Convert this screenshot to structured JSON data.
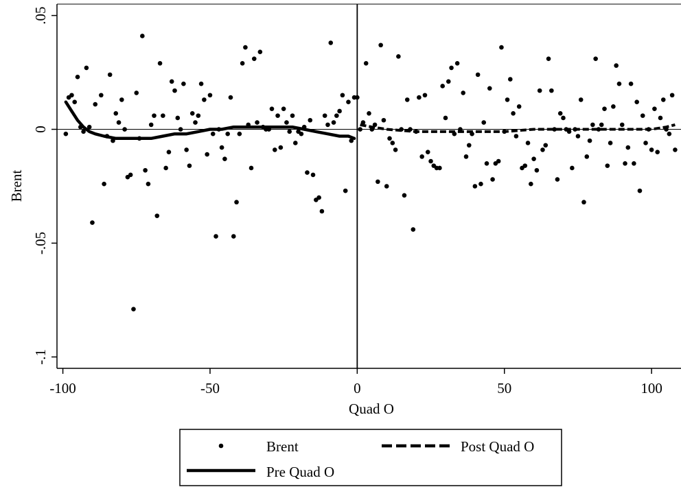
{
  "chart_data": {
    "type": "scatter",
    "xlabel": "Quad O",
    "ylabel": "Brent",
    "xlim": [
      -102,
      110
    ],
    "ylim": [
      -0.105,
      0.055
    ],
    "x_ticks": [
      {
        "value": -100,
        "label": "-100"
      },
      {
        "value": -50,
        "label": "-50"
      },
      {
        "value": 0,
        "label": "0"
      },
      {
        "value": 50,
        "label": "50"
      },
      {
        "value": 100,
        "label": "100"
      }
    ],
    "y_ticks": [
      {
        "value": 0.05,
        "label": ".05"
      },
      {
        "value": 0,
        "label": "0"
      },
      {
        "value": -0.05,
        "label": "-.05"
      },
      {
        "value": -0.1,
        "label": "-.1"
      }
    ],
    "reference_lines": {
      "x": 0,
      "y": 0
    },
    "grid": false,
    "legend": {
      "position": "bottom",
      "entries": [
        {
          "label": "Brent",
          "style": "dot"
        },
        {
          "label": "Post Quad O",
          "style": "dashed"
        },
        {
          "label": "Pre Quad O",
          "style": "solid"
        }
      ]
    },
    "series": [
      {
        "name": "Brent",
        "kind": "scatter",
        "color": "#000000",
        "points": [
          [
            -99,
            -0.002
          ],
          [
            -98,
            0.014
          ],
          [
            -97,
            0.015
          ],
          [
            -96,
            0.012
          ],
          [
            -95,
            0.023
          ],
          [
            -94,
            0.001
          ],
          [
            -93,
            -0.001
          ],
          [
            -92,
            0.027
          ],
          [
            -91,
            0.001
          ],
          [
            -90,
            -0.041
          ],
          [
            -89,
            0.011
          ],
          [
            -87,
            0.015
          ],
          [
            -86,
            -0.024
          ],
          [
            -85,
            -0.003
          ],
          [
            -84,
            0.024
          ],
          [
            -83,
            -0.005
          ],
          [
            -82,
            0.007
          ],
          [
            -81,
            0.003
          ],
          [
            -80,
            0.013
          ],
          [
            -79,
            0.0
          ],
          [
            -78,
            -0.021
          ],
          [
            -77,
            -0.02
          ],
          [
            -76,
            -0.079
          ],
          [
            -75,
            0.016
          ],
          [
            -74,
            -0.004
          ],
          [
            -73,
            0.041
          ],
          [
            -72,
            -0.018
          ],
          [
            -71,
            -0.024
          ],
          [
            -70,
            0.002
          ],
          [
            -69,
            0.006
          ],
          [
            -68,
            -0.038
          ],
          [
            -67,
            0.029
          ],
          [
            -66,
            0.006
          ],
          [
            -65,
            -0.017
          ],
          [
            -64,
            -0.01
          ],
          [
            -63,
            0.021
          ],
          [
            -62,
            0.017
          ],
          [
            -61,
            0.005
          ],
          [
            -60,
            0.0
          ],
          [
            -59,
            0.02
          ],
          [
            -58,
            -0.009
          ],
          [
            -57,
            -0.016
          ],
          [
            -56,
            0.007
          ],
          [
            -55,
            0.003
          ],
          [
            -54,
            0.006
          ],
          [
            -53,
            0.02
          ],
          [
            -52,
            0.013
          ],
          [
            -51,
            -0.011
          ],
          [
            -50,
            0.015
          ],
          [
            -49,
            -0.002
          ],
          [
            -48,
            -0.047
          ],
          [
            -47,
            0.0
          ],
          [
            -46,
            -0.008
          ],
          [
            -45,
            -0.013
          ],
          [
            -44,
            -0.002
          ],
          [
            -43,
            0.014
          ],
          [
            -42,
            -0.047
          ],
          [
            -41,
            -0.032
          ],
          [
            -40,
            -0.002
          ],
          [
            -39,
            0.029
          ],
          [
            -38,
            0.036
          ],
          [
            -37,
            0.002
          ],
          [
            -36,
            -0.017
          ],
          [
            -35,
            0.031
          ],
          [
            -34,
            0.003
          ],
          [
            -33,
            0.034
          ],
          [
            -32,
            0.001
          ],
          [
            -31,
            0.0
          ],
          [
            -30,
            0.0
          ],
          [
            -29,
            0.009
          ],
          [
            -28,
            -0.009
          ],
          [
            -27,
            0.006
          ],
          [
            -26,
            -0.008
          ],
          [
            -25,
            0.009
          ],
          [
            -24,
            0.003
          ],
          [
            -23,
            -0.001
          ],
          [
            -22,
            0.006
          ],
          [
            -21,
            -0.006
          ],
          [
            -20,
            -0.001
          ],
          [
            -19,
            -0.002
          ],
          [
            -18,
            0.001
          ],
          [
            -17,
            -0.019
          ],
          [
            -16,
            0.004
          ],
          [
            -15,
            -0.02
          ],
          [
            -14,
            -0.031
          ],
          [
            -13,
            -0.03
          ],
          [
            -12,
            -0.036
          ],
          [
            -11,
            0.006
          ],
          [
            -10,
            0.002
          ],
          [
            -9,
            0.038
          ],
          [
            -8,
            0.003
          ],
          [
            -7,
            0.006
          ],
          [
            -6,
            0.008
          ],
          [
            -5,
            0.015
          ],
          [
            -4,
            -0.027
          ],
          [
            -3,
            0.012
          ],
          [
            -2,
            -0.005
          ],
          [
            -1,
            0.014
          ],
          [
            0,
            0.014
          ],
          [
            1,
            0.0
          ],
          [
            2,
            0.003
          ],
          [
            3,
            0.029
          ],
          [
            4,
            0.007
          ],
          [
            5,
            0.0
          ],
          [
            6,
            0.002
          ],
          [
            7,
            -0.023
          ],
          [
            8,
            0.037
          ],
          [
            9,
            0.004
          ],
          [
            10,
            -0.025
          ],
          [
            11,
            -0.004
          ],
          [
            12,
            -0.006
          ],
          [
            13,
            -0.009
          ],
          [
            14,
            0.032
          ],
          [
            15,
            0.0
          ],
          [
            16,
            -0.029
          ],
          [
            17,
            0.013
          ],
          [
            18,
            0.0
          ],
          [
            19,
            -0.044
          ],
          [
            20,
            -0.001
          ],
          [
            21,
            0.014
          ],
          [
            22,
            -0.012
          ],
          [
            23,
            0.015
          ],
          [
            24,
            -0.01
          ],
          [
            25,
            -0.014
          ],
          [
            26,
            -0.016
          ],
          [
            27,
            -0.017
          ],
          [
            28,
            -0.017
          ],
          [
            29,
            0.019
          ],
          [
            30,
            0.005
          ],
          [
            31,
            0.021
          ],
          [
            32,
            0.027
          ],
          [
            33,
            -0.002
          ],
          [
            34,
            0.029
          ],
          [
            35,
            0.0
          ],
          [
            36,
            0.016
          ],
          [
            37,
            -0.012
          ],
          [
            38,
            -0.007
          ],
          [
            39,
            -0.002
          ],
          [
            40,
            -0.025
          ],
          [
            41,
            0.024
          ],
          [
            42,
            -0.024
          ],
          [
            43,
            0.003
          ],
          [
            44,
            -0.015
          ],
          [
            45,
            0.018
          ],
          [
            46,
            -0.022
          ],
          [
            47,
            -0.015
          ],
          [
            48,
            -0.014
          ],
          [
            49,
            0.036
          ],
          [
            50,
            -0.001
          ],
          [
            51,
            0.013
          ],
          [
            52,
            0.022
          ],
          [
            53,
            0.007
          ],
          [
            54,
            -0.003
          ],
          [
            55,
            0.01
          ],
          [
            56,
            -0.017
          ],
          [
            57,
            -0.016
          ],
          [
            58,
            -0.006
          ],
          [
            59,
            -0.024
          ],
          [
            60,
            -0.013
          ],
          [
            61,
            -0.018
          ],
          [
            62,
            0.017
          ],
          [
            63,
            -0.009
          ],
          [
            64,
            -0.007
          ],
          [
            65,
            0.031
          ],
          [
            66,
            0.017
          ],
          [
            67,
            0.0
          ],
          [
            68,
            -0.022
          ],
          [
            69,
            0.007
          ],
          [
            70,
            0.005
          ],
          [
            71,
            0.0
          ],
          [
            72,
            -0.001
          ],
          [
            73,
            -0.017
          ],
          [
            74,
            0.0
          ],
          [
            75,
            -0.003
          ],
          [
            76,
            0.013
          ],
          [
            77,
            -0.032
          ],
          [
            78,
            -0.012
          ],
          [
            79,
            -0.005
          ],
          [
            80,
            0.002
          ],
          [
            81,
            0.031
          ],
          [
            82,
            0.0
          ],
          [
            83,
            0.002
          ],
          [
            84,
            0.009
          ],
          [
            85,
            -0.016
          ],
          [
            86,
            -0.006
          ],
          [
            87,
            0.01
          ],
          [
            88,
            0.028
          ],
          [
            89,
            0.02
          ],
          [
            90,
            0.002
          ],
          [
            91,
            -0.015
          ],
          [
            92,
            -0.008
          ],
          [
            93,
            0.02
          ],
          [
            94,
            -0.015
          ],
          [
            95,
            0.012
          ],
          [
            96,
            -0.027
          ],
          [
            97,
            0.006
          ],
          [
            98,
            -0.006
          ],
          [
            99,
            0.0
          ],
          [
            100,
            -0.009
          ],
          [
            101,
            0.009
          ],
          [
            102,
            -0.01
          ],
          [
            103,
            0.005
          ],
          [
            104,
            0.013
          ],
          [
            105,
            0.0
          ],
          [
            106,
            -0.002
          ],
          [
            107,
            0.015
          ],
          [
            108,
            -0.009
          ]
        ]
      },
      {
        "name": "Pre Quad O",
        "kind": "line",
        "style": "solid",
        "color": "#000000",
        "points": [
          [
            -99,
            0.012
          ],
          [
            -97,
            0.008
          ],
          [
            -95,
            0.004
          ],
          [
            -93,
            0.001
          ],
          [
            -91,
            -0.001
          ],
          [
            -89,
            -0.002
          ],
          [
            -86,
            -0.003
          ],
          [
            -82,
            -0.004
          ],
          [
            -78,
            -0.004
          ],
          [
            -74,
            -0.004
          ],
          [
            -70,
            -0.004
          ],
          [
            -66,
            -0.003
          ],
          [
            -62,
            -0.002
          ],
          [
            -58,
            -0.002
          ],
          [
            -54,
            -0.001
          ],
          [
            -50,
            0.0
          ],
          [
            -46,
            0.0
          ],
          [
            -42,
            0.001
          ],
          [
            -38,
            0.001
          ],
          [
            -34,
            0.001
          ],
          [
            -30,
            0.001
          ],
          [
            -26,
            0.001
          ],
          [
            -22,
            0.001
          ],
          [
            -18,
            0.0
          ],
          [
            -14,
            -0.001
          ],
          [
            -10,
            -0.002
          ],
          [
            -6,
            -0.003
          ],
          [
            -3,
            -0.003
          ],
          [
            -1,
            -0.004
          ]
        ]
      },
      {
        "name": "Post Quad O",
        "kind": "line",
        "style": "dashed",
        "color": "#000000",
        "points": [
          [
            1,
            0.002
          ],
          [
            5,
            0.001
          ],
          [
            10,
            0.0
          ],
          [
            20,
            -0.001
          ],
          [
            30,
            -0.001
          ],
          [
            40,
            -0.001
          ],
          [
            50,
            -0.001
          ],
          [
            60,
            0.0
          ],
          [
            70,
            0.0
          ],
          [
            80,
            0.0
          ],
          [
            90,
            0.0
          ],
          [
            100,
            0.0
          ],
          [
            105,
            0.001
          ],
          [
            108,
            0.002
          ]
        ]
      }
    ]
  }
}
